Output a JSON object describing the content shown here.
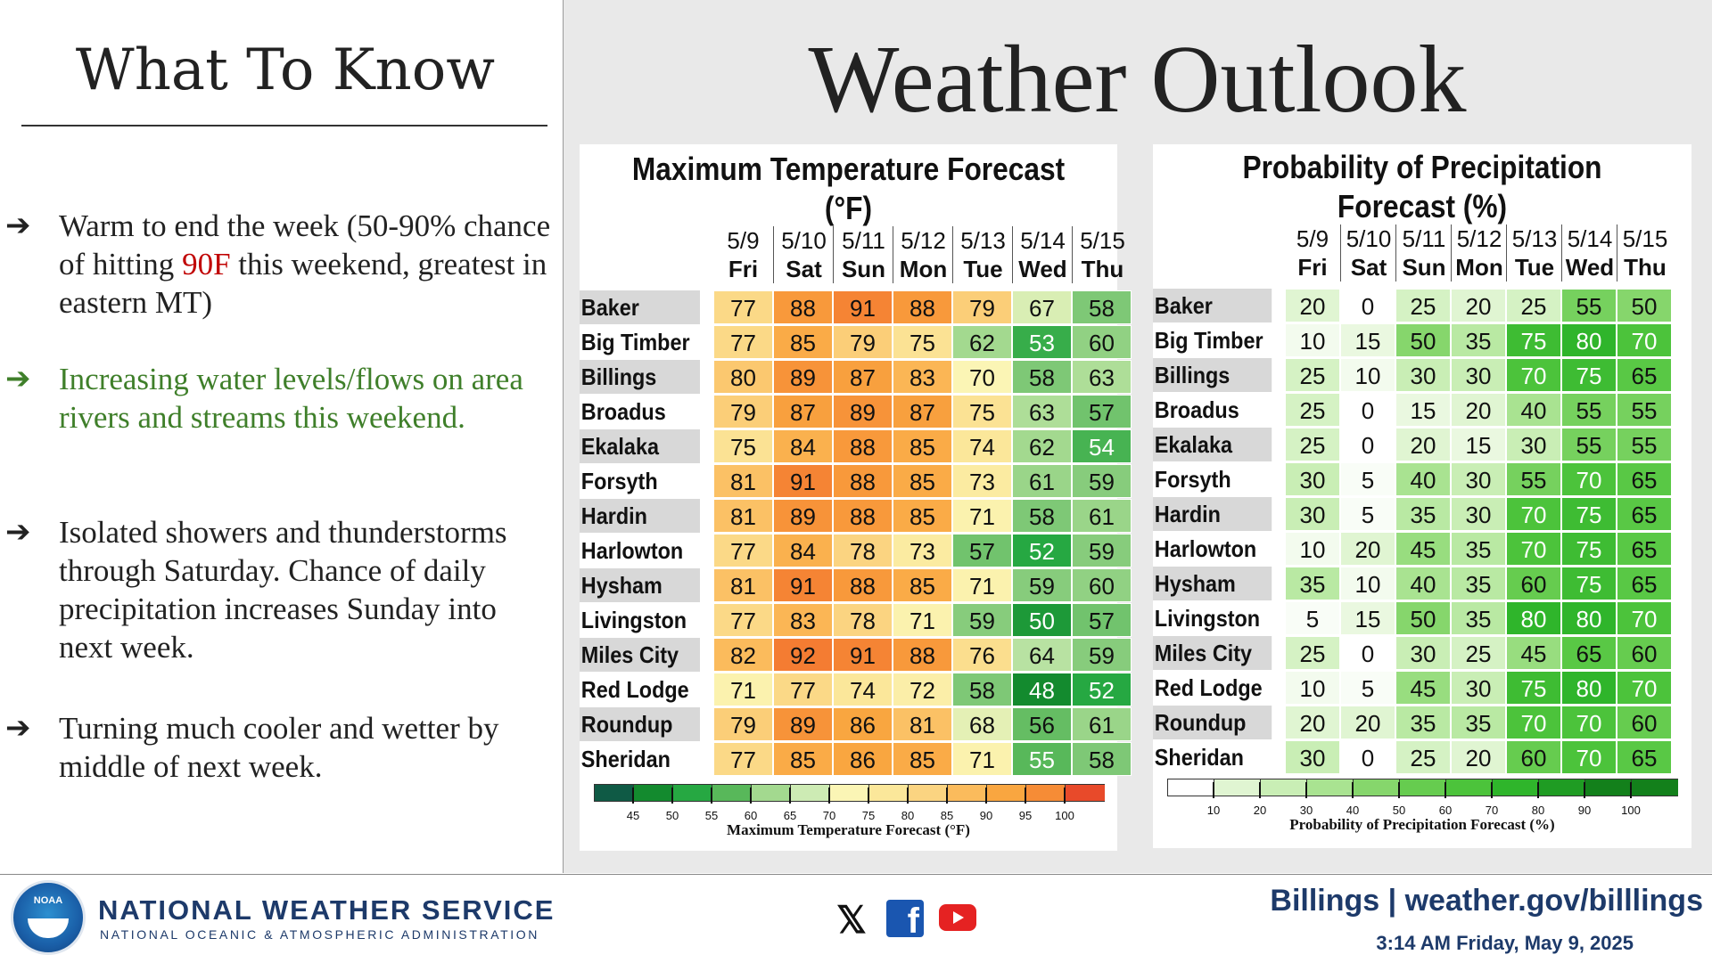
{
  "left": {
    "title": "What To Know",
    "bullets": [
      {
        "arrow": "➔",
        "color": "#222222",
        "parts": [
          "Warm to end the week (50-90% chance of hitting ",
          "90F",
          " this weekend, greatest in eastern MT)"
        ],
        "highlight_color": "#c00000"
      },
      {
        "arrow": "➔",
        "color": "#3f7f2a",
        "text": "Increasing water levels/flows on area rivers and streams this weekend."
      },
      {
        "arrow": "➔",
        "color": "#222222",
        "text": "Isolated showers and thunderstorms through Saturday. Chance of daily precipitation increases Sunday into next week."
      },
      {
        "arrow": "➔",
        "color": "#222222",
        "text": "Turning much cooler and wetter by middle of next week."
      }
    ]
  },
  "main_title": "Weather Outlook",
  "days": [
    {
      "date": "5/9",
      "day": "Fri"
    },
    {
      "date": "5/10",
      "day": "Sat"
    },
    {
      "date": "5/11",
      "day": "Sun"
    },
    {
      "date": "5/12",
      "day": "Mon"
    },
    {
      "date": "5/13",
      "day": "Tue"
    },
    {
      "date": "5/14",
      "day": "Wed"
    },
    {
      "date": "5/15",
      "day": "Thu"
    }
  ],
  "cities": [
    "Baker",
    "Big Timber",
    "Billings",
    "Broadus",
    "Ekalaka",
    "Forsyth",
    "Hardin",
    "Harlowton",
    "Hysham",
    "Livingston",
    "Miles City",
    "Red Lodge",
    "Roundup",
    "Sheridan"
  ],
  "chart_data": [
    {
      "type": "table",
      "title": "Maximum Temperature Forecast (°F)",
      "colorbar_title": "Maximum Temperature Forecast (°F)",
      "colorbar_ticks": [
        "45",
        "50",
        "55",
        "60",
        "65",
        "70",
        "75",
        "80",
        "85",
        "90",
        "95",
        "100"
      ],
      "values": [
        [
          77,
          88,
          91,
          88,
          79,
          67,
          58
        ],
        [
          77,
          85,
          79,
          75,
          62,
          53,
          60
        ],
        [
          80,
          89,
          87,
          83,
          70,
          58,
          63
        ],
        [
          79,
          87,
          89,
          87,
          75,
          63,
          57
        ],
        [
          75,
          84,
          88,
          85,
          74,
          62,
          54
        ],
        [
          81,
          91,
          88,
          85,
          73,
          61,
          59
        ],
        [
          81,
          89,
          88,
          85,
          71,
          58,
          61
        ],
        [
          77,
          84,
          78,
          73,
          57,
          52,
          59
        ],
        [
          81,
          91,
          88,
          85,
          71,
          59,
          60
        ],
        [
          77,
          83,
          78,
          71,
          59,
          50,
          57
        ],
        [
          82,
          92,
          91,
          88,
          76,
          64,
          59
        ],
        [
          71,
          77,
          74,
          72,
          58,
          48,
          52
        ],
        [
          79,
          89,
          86,
          81,
          68,
          56,
          61
        ],
        [
          77,
          85,
          86,
          85,
          71,
          55,
          58
        ]
      ]
    },
    {
      "type": "table",
      "title": "Probability of Precipitation Forecast (%)",
      "colorbar_title": "Probability of Precipitation Forecast (%)",
      "colorbar_ticks": [
        "10",
        "20",
        "30",
        "40",
        "50",
        "60",
        "70",
        "80",
        "90",
        "100"
      ],
      "values": [
        [
          20,
          0,
          25,
          20,
          25,
          55,
          50
        ],
        [
          10,
          15,
          50,
          35,
          75,
          80,
          70
        ],
        [
          25,
          10,
          30,
          30,
          70,
          75,
          65
        ],
        [
          25,
          0,
          15,
          20,
          40,
          55,
          55
        ],
        [
          25,
          0,
          20,
          15,
          30,
          55,
          55
        ],
        [
          30,
          5,
          40,
          30,
          55,
          70,
          65
        ],
        [
          30,
          5,
          35,
          30,
          70,
          75,
          65
        ],
        [
          10,
          20,
          45,
          35,
          70,
          75,
          65
        ],
        [
          35,
          10,
          40,
          35,
          60,
          75,
          65
        ],
        [
          5,
          15,
          50,
          35,
          80,
          80,
          70
        ],
        [
          25,
          0,
          30,
          25,
          45,
          65,
          60
        ],
        [
          10,
          5,
          45,
          30,
          75,
          80,
          70
        ],
        [
          20,
          20,
          35,
          35,
          70,
          70,
          60
        ],
        [
          30,
          0,
          25,
          20,
          60,
          70,
          65
        ]
      ]
    }
  ],
  "footer": {
    "logo_text": "NOAA",
    "agency": "NATIONAL WEATHER SERVICE",
    "agency_sub": "NATIONAL OCEANIC & ATMOSPHERIC ADMINISTRATION",
    "site": "Billings | weather.gov/billlings",
    "timestamp": "3:14 AM Friday, May 9, 2025",
    "social": [
      "x-icon",
      "facebook-icon",
      "youtube-icon"
    ]
  }
}
